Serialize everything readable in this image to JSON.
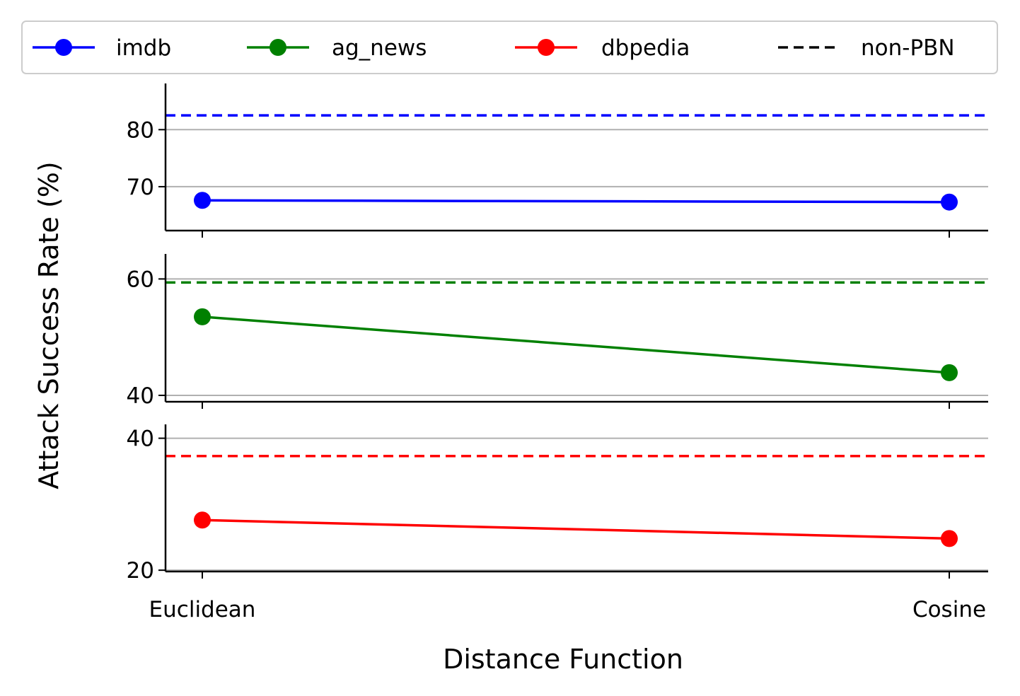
{
  "chart_data": {
    "type": "line",
    "categories": [
      "Euclidean",
      "Cosine"
    ],
    "xlabel": "Distance Function",
    "ylabel": "Attack Success Rate (%)",
    "grid": "horizontal",
    "legend_placement": "top",
    "legend": [
      {
        "label": "imdb",
        "color": "#0000ff",
        "style": "solid-marker"
      },
      {
        "label": "ag_news",
        "color": "#008000",
        "style": "solid-marker"
      },
      {
        "label": "dbpedia",
        "color": "#ff0000",
        "style": "solid-marker"
      },
      {
        "label": "non-PBN",
        "color": "#000000",
        "style": "dashed"
      }
    ],
    "panels": [
      {
        "series": "imdb",
        "color": "#0000ff",
        "values": [
          67.6,
          67.3
        ],
        "baseline": 82.5,
        "ylim": [
          62.3,
          88.1
        ],
        "yticks": [
          70,
          80
        ]
      },
      {
        "series": "ag_news",
        "color": "#008000",
        "values": [
          53.5,
          43.9
        ],
        "baseline": 59.4,
        "ylim": [
          38.9,
          64.3
        ],
        "yticks": [
          40,
          60
        ]
      },
      {
        "series": "dbpedia",
        "color": "#ff0000",
        "values": [
          27.6,
          24.8
        ],
        "baseline": 37.3,
        "ylim": [
          19.8,
          42.1
        ],
        "yticks": [
          20,
          40
        ]
      }
    ]
  }
}
